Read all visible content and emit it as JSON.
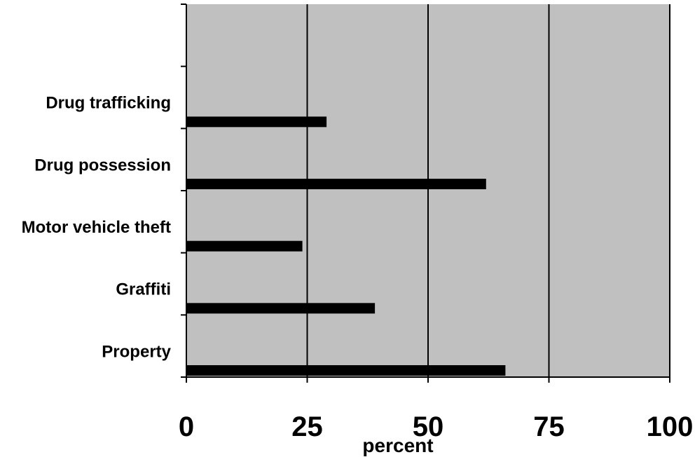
{
  "chart_data": {
    "type": "bar",
    "orientation": "horizontal",
    "categories": [
      "Property",
      "Graffiti",
      "Motor vehicle theft",
      "Drug possession",
      "Drug trafficking",
      ""
    ],
    "values": [
      66,
      39,
      24,
      62,
      29,
      null
    ],
    "xlabel": "percent",
    "xlim": [
      0,
      100
    ],
    "xticks": [
      "0",
      "25",
      "50",
      "75",
      "100"
    ],
    "grid": "vertical",
    "colors": {
      "plot_background": "#c0c0c0",
      "bar": "#000000",
      "gridline": "#000000"
    }
  }
}
